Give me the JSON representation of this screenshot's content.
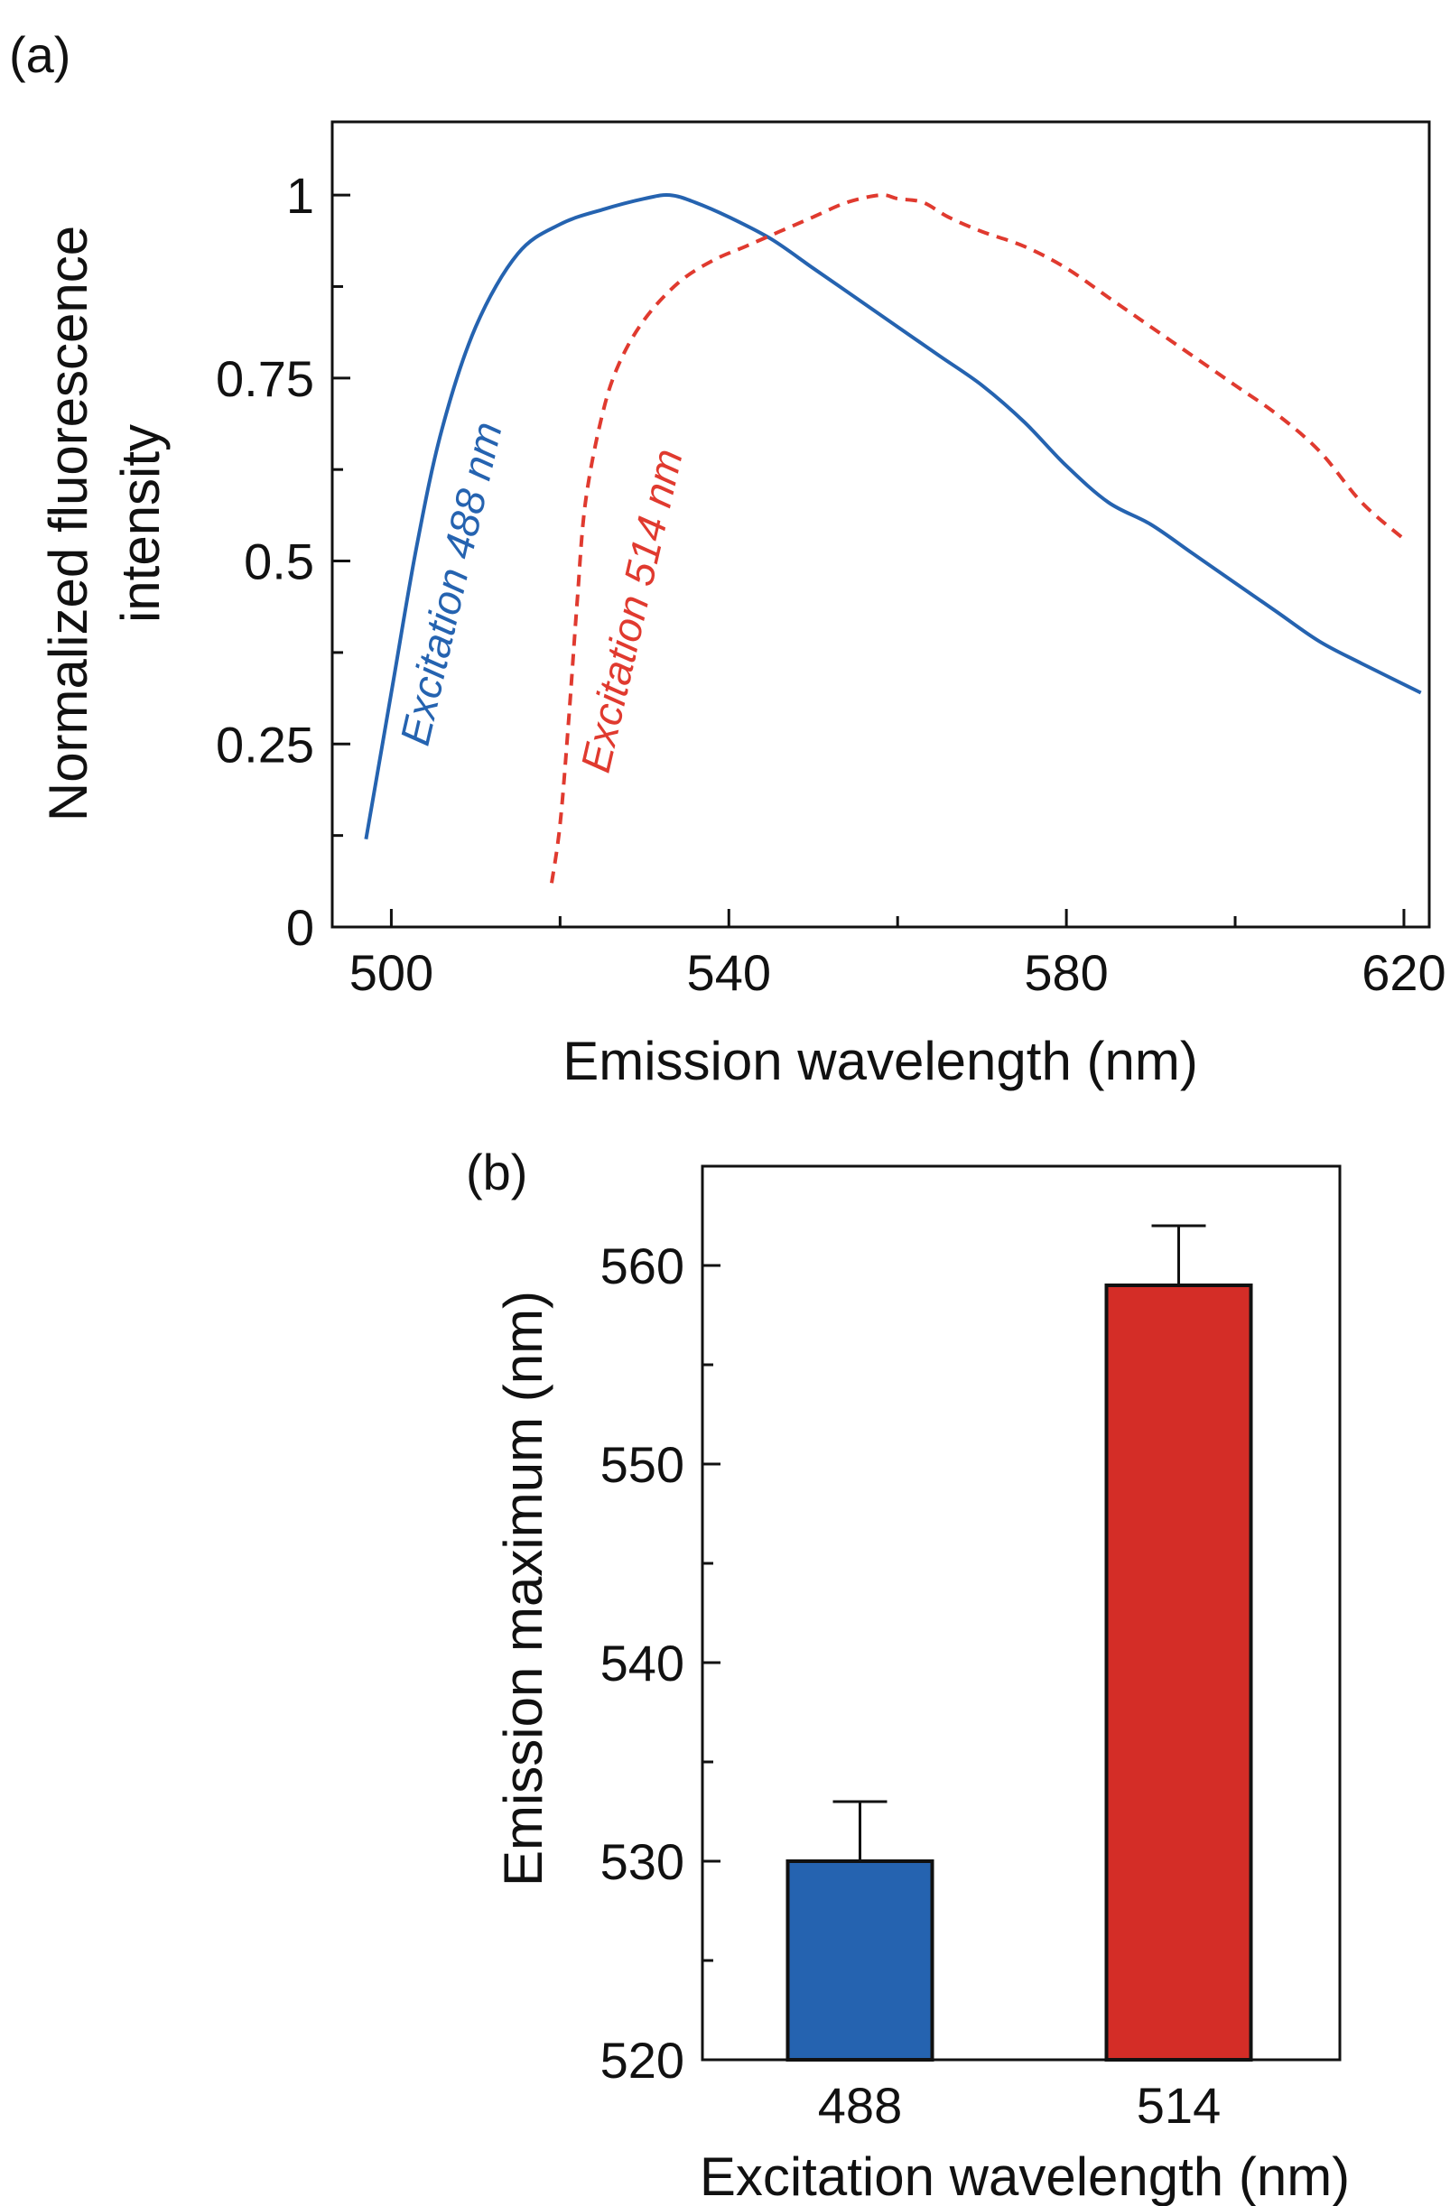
{
  "chart_data": [
    {
      "panel_label": "(a)",
      "type": "line",
      "xlabel": "Emission wavelength (nm)",
      "ylabel_lines": [
        "Normalized fluorescence",
        "intensity"
      ],
      "xlim": [
        493,
        623
      ],
      "ylim": [
        0,
        1.1
      ],
      "xticks": [
        500,
        540,
        580,
        620
      ],
      "xticks_minor": [
        520,
        560,
        600
      ],
      "yticks": [
        0,
        0.25,
        0.5,
        0.75,
        1
      ],
      "yticks_minor": [
        0.125,
        0.375,
        0.625,
        0.875
      ],
      "ytick_labels": [
        "0",
        "0.25",
        "0.5",
        "0.75",
        "1"
      ],
      "xtick_labels": [
        "500",
        "540",
        "580",
        "620"
      ],
      "grid": false,
      "series": [
        {
          "color": "#2563b0",
          "style": "solid",
          "x": [
            497,
            500,
            503,
            506,
            510,
            515,
            520,
            525,
            530,
            533,
            536,
            540,
            545,
            550,
            555,
            560,
            565,
            570,
            575,
            580,
            585,
            590,
            595,
            600,
            605,
            610,
            615,
            622
          ],
          "y": [
            0.12,
            0.32,
            0.52,
            0.68,
            0.82,
            0.92,
            0.96,
            0.98,
            0.995,
            1.0,
            0.99,
            0.97,
            0.94,
            0.9,
            0.86,
            0.82,
            0.78,
            0.74,
            0.69,
            0.63,
            0.58,
            0.55,
            0.51,
            0.47,
            0.43,
            0.39,
            0.36,
            0.32
          ]
        },
        {
          "color": "#e03a2f",
          "style": "dashed",
          "x": [
            519,
            520,
            521,
            522,
            523,
            525,
            527,
            530,
            534,
            538,
            542,
            546,
            550,
            554,
            558,
            560,
            563,
            566,
            570,
            575,
            580,
            585,
            590,
            595,
            600,
            605,
            610,
            615,
            620
          ],
          "y": [
            0.06,
            0.14,
            0.28,
            0.44,
            0.58,
            0.7,
            0.77,
            0.83,
            0.88,
            0.91,
            0.93,
            0.95,
            0.97,
            0.99,
            1.0,
            0.995,
            0.99,
            0.97,
            0.95,
            0.93,
            0.9,
            0.86,
            0.82,
            0.78,
            0.74,
            0.7,
            0.65,
            0.58,
            0.53
          ]
        }
      ],
      "annotations": [
        {
          "text": "Excitation 488 nm",
          "color": "#2563b0"
        },
        {
          "text": "Excitation 514 nm",
          "color": "#e03a2f"
        }
      ]
    },
    {
      "panel_label": "(b)",
      "type": "bar",
      "xlabel": "Excitation wavelength (nm)",
      "ylabel": "Emission maximum (nm)",
      "categories": [
        "488",
        "514"
      ],
      "values": [
        530,
        559
      ],
      "errors": [
        3,
        3
      ],
      "colors": [
        "#2563b0",
        "#d42d27"
      ],
      "ylim": [
        520,
        565
      ],
      "yticks": [
        520,
        530,
        540,
        550,
        560
      ],
      "yticks_minor": [
        525,
        535,
        545,
        555
      ],
      "ytick_labels": [
        "520",
        "530",
        "540",
        "550",
        "560"
      ],
      "grid": false
    }
  ]
}
